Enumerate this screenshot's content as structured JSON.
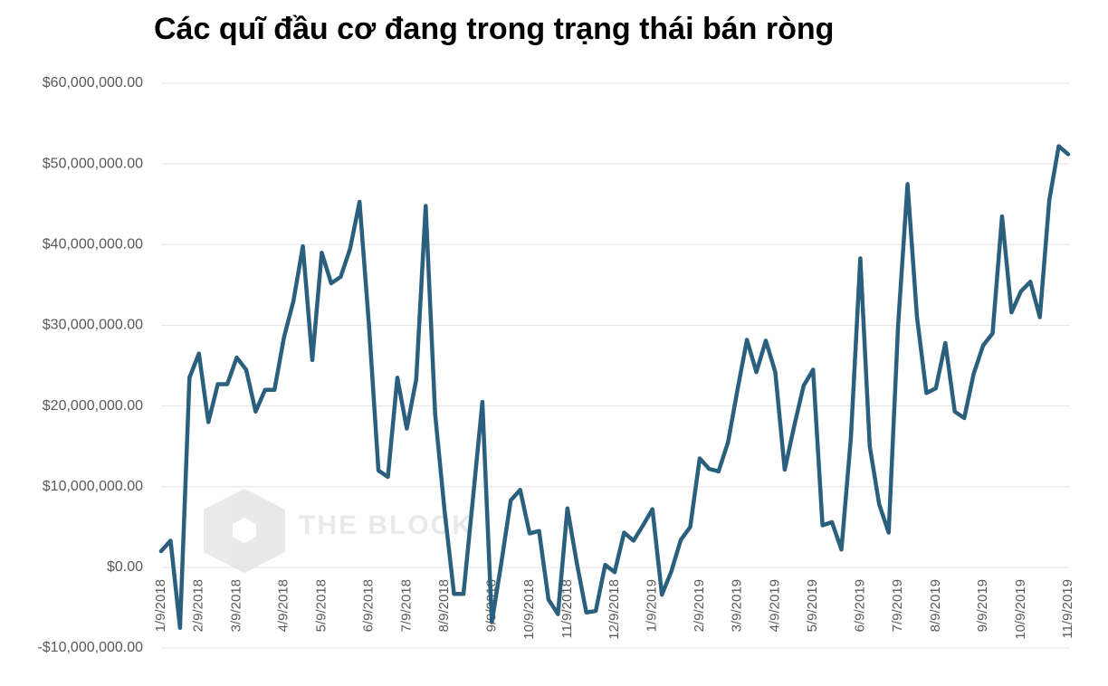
{
  "chart_data": {
    "type": "line",
    "title": "Các quĩ đầu cơ đang trong trạng thái bán ròng",
    "watermark": "THE BLOCK",
    "categories": [
      "1/9/2018",
      null,
      null,
      null,
      "2/9/2018",
      null,
      null,
      null,
      "3/9/2018",
      null,
      null,
      null,
      null,
      "4/9/2018",
      null,
      null,
      null,
      "5/9/2018",
      null,
      null,
      null,
      null,
      "6/9/2018",
      null,
      null,
      null,
      "7/9/2018",
      null,
      null,
      null,
      "8/9/2018",
      null,
      null,
      null,
      null,
      "9/9/2018",
      null,
      null,
      null,
      "10/9/2018",
      null,
      null,
      null,
      "11/9/2018",
      null,
      null,
      null,
      null,
      "12/9/2018",
      null,
      null,
      null,
      "1/9/2019",
      null,
      null,
      null,
      null,
      "2/9/2019",
      null,
      null,
      null,
      "3/9/2019",
      null,
      null,
      null,
      "4/9/2019",
      null,
      null,
      null,
      "5/9/2019",
      null,
      null,
      null,
      null,
      "6/9/2019",
      null,
      null,
      null,
      "7/9/2019",
      null,
      null,
      null,
      "8/9/2019",
      null,
      null,
      null,
      null,
      "9/9/2019",
      null,
      null,
      null,
      "10/9/2019",
      null,
      null,
      null,
      null,
      "11/9/2019"
    ],
    "values": [
      2000000,
      3300000,
      -7500000,
      23500000,
      26500000,
      18000000,
      22700000,
      22700000,
      26000000,
      24500000,
      19300000,
      22000000,
      22000000,
      28500000,
      33000000,
      39800000,
      25700000,
      39000000,
      35200000,
      36000000,
      39500000,
      45300000,
      30000000,
      12000000,
      11200000,
      23500000,
      17200000,
      23300000,
      44800000,
      19000000,
      7000000,
      -3300000,
      -3300000,
      8500000,
      20500000,
      -6800000,
      500000,
      8300000,
      9600000,
      4200000,
      4500000,
      -4000000,
      -5800000,
      7300000,
      500000,
      -5600000,
      -5400000,
      300000,
      -600000,
      4300000,
      3300000,
      5200000,
      7200000,
      -3400000,
      -500000,
      3400000,
      5000000,
      13500000,
      12200000,
      11900000,
      15500000,
      22000000,
      28200000,
      24200000,
      28100000,
      24200000,
      12100000,
      17500000,
      22500000,
      24500000,
      5200000,
      5600000,
      2200000,
      16000000,
      38300000,
      15000000,
      7800000,
      4300000,
      30000000,
      47500000,
      31000000,
      21600000,
      22200000,
      27800000,
      19300000,
      18500000,
      24000000,
      27500000,
      29000000,
      43500000,
      31600000,
      34200000,
      35400000,
      31000000,
      45500000,
      52200000,
      51200000
    ],
    "color": "#2a5f7e",
    "ylim": [
      -10000000,
      60000000
    ],
    "yticks": [
      {
        "value": -10000000,
        "label": "-$10,000,000.00"
      },
      {
        "value": 0,
        "label": "$0.00"
      },
      {
        "value": 10000000,
        "label": "$10,000,000.00"
      },
      {
        "value": 20000000,
        "label": "$20,000,000.00"
      },
      {
        "value": 30000000,
        "label": "$30,000,000.00"
      },
      {
        "value": 40000000,
        "label": "$40,000,000.00"
      },
      {
        "value": 50000000,
        "label": "$50,000,000.00"
      },
      {
        "value": 60000000,
        "label": "$60,000,000.00"
      }
    ],
    "grid": true
  }
}
